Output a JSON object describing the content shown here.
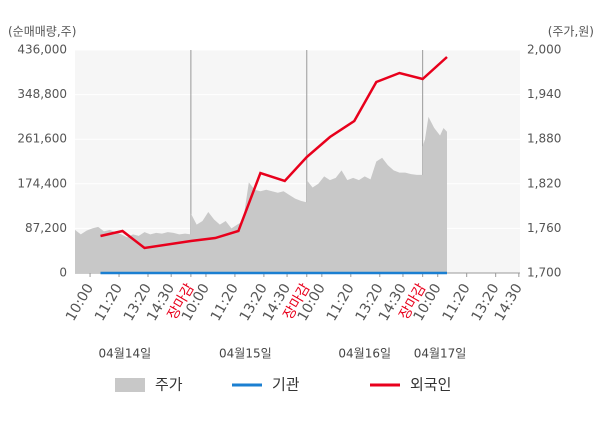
{
  "chart_data": {
    "type": "combo",
    "y_axis_label": "(순매매량,주)",
    "y2_axis_label": "(주가,원)",
    "xlim": [
      0,
      3.84
    ],
    "xticks": [
      {
        "value": 0.13,
        "label": "10:00"
      },
      {
        "value": 0.38,
        "label": "11:20"
      },
      {
        "value": 0.63,
        "label": "13:20"
      },
      {
        "value": 0.83,
        "label": "14:30"
      },
      {
        "value": 1.0,
        "label": "장마감"
      },
      {
        "value": 1.13,
        "label": "10:00"
      },
      {
        "value": 1.38,
        "label": "11:20"
      },
      {
        "value": 1.63,
        "label": "13:20"
      },
      {
        "value": 1.83,
        "label": "14:30"
      },
      {
        "value": 2.0,
        "label": "장마감"
      },
      {
        "value": 2.13,
        "label": "10:00"
      },
      {
        "value": 2.38,
        "label": "11:20"
      },
      {
        "value": 2.63,
        "label": "13:20"
      },
      {
        "value": 2.83,
        "label": "14:30"
      },
      {
        "value": 3.0,
        "label": "장마감"
      },
      {
        "value": 3.13,
        "label": "10:00"
      },
      {
        "value": 3.38,
        "label": "11:20"
      },
      {
        "value": 3.63,
        "label": "13:20"
      },
      {
        "value": 3.83,
        "label": "14:30"
      }
    ],
    "close_label_color": "#e8001c",
    "x_dividers": [
      1,
      2,
      3
    ],
    "date_labels": [
      {
        "value": 0.43,
        "label": "04월14일"
      },
      {
        "value": 1.47,
        "label": "04월15일"
      },
      {
        "value": 2.5,
        "label": "04월16일"
      },
      {
        "value": 3.15,
        "label": "04월17일"
      }
    ],
    "ylim": [
      0,
      436000
    ],
    "yticks": [
      0,
      {
        "value": 87200,
        "label": "87,200"
      },
      {
        "value": 174400,
        "label": "174,400"
      },
      {
        "value": 261600,
        "label": "261,600"
      },
      {
        "value": 348800,
        "label": "348,800"
      },
      {
        "value": 436000,
        "label": "436,000"
      }
    ],
    "y2lim": [
      1700,
      2000
    ],
    "y2ticks": [
      {
        "value": 1700,
        "label": "1,700"
      },
      {
        "value": 1760,
        "label": "1,760"
      },
      {
        "value": 1820,
        "label": "1,820"
      },
      {
        "value": 1880,
        "label": "1,880"
      },
      {
        "value": 1940,
        "label": "1,940"
      },
      {
        "value": 2000,
        "label": "2,000"
      }
    ],
    "series": [
      {
        "name": "주가",
        "kind": "area",
        "axis": "y2",
        "color": "#c8c8c8",
        "x": [
          0,
          0.05,
          0.1,
          0.15,
          0.2,
          0.25,
          0.3,
          0.35,
          0.4,
          0.45,
          0.5,
          0.55,
          0.6,
          0.65,
          0.7,
          0.75,
          0.8,
          0.85,
          0.9,
          0.95,
          1.0,
          1.0,
          1.05,
          1.1,
          1.15,
          1.2,
          1.25,
          1.3,
          1.35,
          1.4,
          1.45,
          1.5,
          1.55,
          1.6,
          1.65,
          1.7,
          1.75,
          1.8,
          1.85,
          1.9,
          1.95,
          2.0,
          2.0,
          2.05,
          2.1,
          2.15,
          2.2,
          2.25,
          2.3,
          2.35,
          2.4,
          2.45,
          2.5,
          2.55,
          2.6,
          2.65,
          2.7,
          2.75,
          2.8,
          2.85,
          2.9,
          2.95,
          3.0,
          3.0,
          3.02,
          3.05,
          3.1,
          3.15,
          3.18,
          3.21
        ],
        "values": [
          1758,
          1752,
          1757,
          1760,
          1762,
          1756,
          1758,
          1755,
          1752,
          1748,
          1752,
          1750,
          1755,
          1752,
          1754,
          1753,
          1755,
          1754,
          1752,
          1753,
          1752,
          1780,
          1765,
          1770,
          1782,
          1772,
          1765,
          1770,
          1760,
          1765,
          1770,
          1822,
          1812,
          1810,
          1812,
          1810,
          1808,
          1810,
          1805,
          1800,
          1797,
          1795,
          1825,
          1815,
          1820,
          1830,
          1825,
          1828,
          1838,
          1825,
          1828,
          1825,
          1830,
          1826,
          1850,
          1855,
          1845,
          1838,
          1835,
          1835,
          1833,
          1832,
          1832,
          1870,
          1880,
          1910,
          1895,
          1885,
          1895,
          1890
        ]
      },
      {
        "name": "기관",
        "kind": "line",
        "color": "#1b7fd1",
        "x": [
          0.22,
          0.41,
          0.6,
          1.0,
          1.21,
          1.41,
          1.6,
          1.81,
          2.0,
          2.2,
          2.41,
          2.6,
          2.8,
          3.0,
          3.21
        ],
        "values": [
          0,
          0,
          0,
          0,
          0,
          0,
          0,
          0,
          0,
          0,
          0,
          0,
          0,
          0,
          0
        ]
      },
      {
        "name": "외국인",
        "kind": "line",
        "color": "#e8001c",
        "x": [
          0.22,
          0.41,
          0.6,
          1.0,
          1.21,
          1.41,
          1.6,
          1.81,
          2.0,
          2.2,
          2.41,
          2.6,
          2.8,
          3.0,
          3.21
        ],
        "values": [
          72300,
          82100,
          48900,
          62600,
          68400,
          82100,
          195500,
          179900,
          226800,
          265900,
          297200,
          373400,
          391000,
          379300,
          422300
        ]
      }
    ]
  }
}
